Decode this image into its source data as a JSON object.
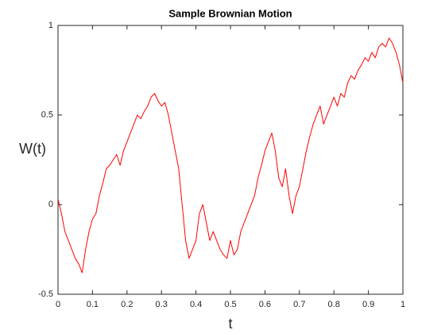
{
  "chart_data": {
    "type": "line",
    "title": "Sample Brownian Motion",
    "xlabel": "t",
    "ylabel": "W(t)",
    "x": [
      0,
      0.01,
      0.02,
      0.03,
      0.04,
      0.05,
      0.06,
      0.07,
      0.08,
      0.09,
      0.1,
      0.11,
      0.12,
      0.13,
      0.14,
      0.15,
      0.16,
      0.17,
      0.18,
      0.19,
      0.2,
      0.21,
      0.22,
      0.23,
      0.24,
      0.25,
      0.26,
      0.27,
      0.28,
      0.29,
      0.3,
      0.31,
      0.32,
      0.33,
      0.34,
      0.35,
      0.36,
      0.37,
      0.38,
      0.39,
      0.4,
      0.41,
      0.42,
      0.43,
      0.44,
      0.45,
      0.46,
      0.47,
      0.48,
      0.49,
      0.5,
      0.51,
      0.52,
      0.53,
      0.54,
      0.55,
      0.56,
      0.57,
      0.58,
      0.59,
      0.6,
      0.61,
      0.62,
      0.63,
      0.64,
      0.65,
      0.66,
      0.67,
      0.68,
      0.69,
      0.7,
      0.71,
      0.72,
      0.73,
      0.74,
      0.75,
      0.76,
      0.77,
      0.78,
      0.79,
      0.8,
      0.81,
      0.82,
      0.83,
      0.84,
      0.85,
      0.86,
      0.87,
      0.88,
      0.89,
      0.9,
      0.91,
      0.92,
      0.93,
      0.94,
      0.95,
      0.96,
      0.97,
      0.98,
      0.99,
      1
    ],
    "series": [
      {
        "name": "W(t)",
        "color": "#ff0000",
        "values": [
          0.03,
          -0.05,
          -0.15,
          -0.2,
          -0.25,
          -0.3,
          -0.33,
          -0.38,
          -0.25,
          -0.15,
          -0.08,
          -0.05,
          0.05,
          0.12,
          0.2,
          0.22,
          0.25,
          0.28,
          0.22,
          0.3,
          0.35,
          0.4,
          0.45,
          0.5,
          0.48,
          0.52,
          0.55,
          0.6,
          0.62,
          0.58,
          0.55,
          0.57,
          0.5,
          0.4,
          0.3,
          0.2,
          0,
          -0.2,
          -0.3,
          -0.25,
          -0.2,
          -0.05,
          0,
          -0.1,
          -0.2,
          -0.15,
          -0.2,
          -0.25,
          -0.28,
          -0.3,
          -0.2,
          -0.28,
          -0.25,
          -0.15,
          -0.1,
          -0.05,
          0,
          0.05,
          0.15,
          0.22,
          0.3,
          0.35,
          0.4,
          0.3,
          0.15,
          0.1,
          0.2,
          0.05,
          -0.05,
          0.05,
          0.1,
          0.2,
          0.3,
          0.38,
          0.45,
          0.5,
          0.55,
          0.45,
          0.5,
          0.55,
          0.6,
          0.55,
          0.62,
          0.6,
          0.68,
          0.72,
          0.7,
          0.75,
          0.78,
          0.82,
          0.8,
          0.85,
          0.82,
          0.88,
          0.9,
          0.88,
          0.93,
          0.9,
          0.85,
          0.78,
          0.68
        ]
      }
    ],
    "xlim": [
      0,
      1
    ],
    "xticks": [
      0,
      0.1,
      0.2,
      0.3,
      0.4,
      0.5,
      0.6,
      0.7,
      0.8,
      0.9,
      1
    ],
    "ylim": [
      -0.5,
      1
    ],
    "yticks": [
      -0.5,
      0,
      0.5,
      1
    ]
  }
}
